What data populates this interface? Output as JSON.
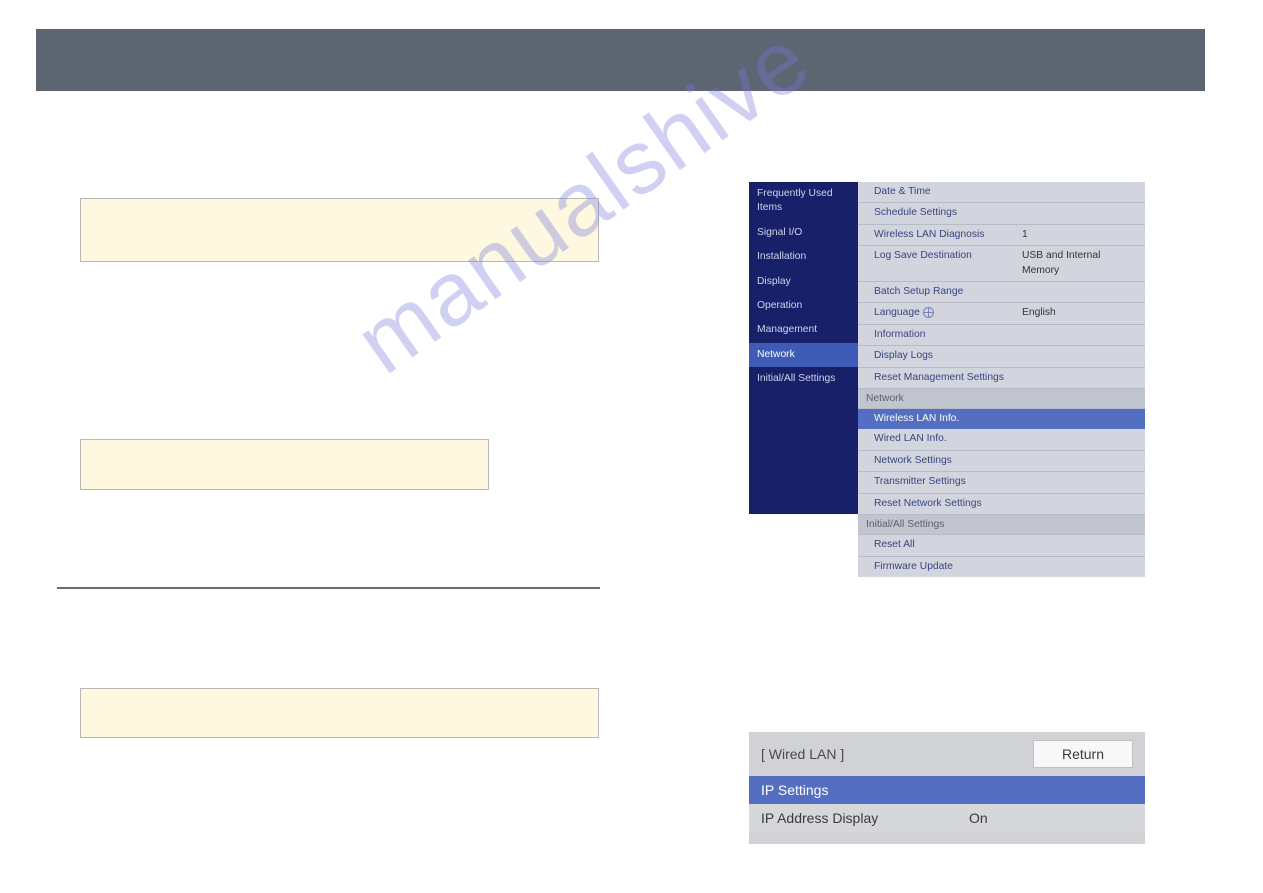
{
  "colors": {
    "banner": "#5d6573",
    "yellowbox_bg": "#fdf8df",
    "yellowbox_border": "#b8b8b8",
    "sidebar_bg": "#18206a",
    "sidebar_selected": "#3e5bb5",
    "right_bg": "#d2d5dd",
    "right_selected": "#546fc1",
    "header_bg": "#c1c5cf",
    "divider": "#6b6b6b",
    "watermark": "rgba(120,120,220,0.35)"
  },
  "watermark": {
    "text": "manualshive"
  },
  "sidebar": {
    "items": [
      {
        "label": "Frequently Used Items"
      },
      {
        "label": "Signal I/O"
      },
      {
        "label": "Installation"
      },
      {
        "label": "Display"
      },
      {
        "label": "Operation"
      },
      {
        "label": "Management"
      },
      {
        "label": "Network"
      },
      {
        "label": "Initial/All Settings"
      }
    ],
    "selected_index": 6
  },
  "right_panel": {
    "management_items": [
      {
        "label": "Date & Time",
        "value": ""
      },
      {
        "label": "Schedule Settings",
        "value": ""
      },
      {
        "label": "Wireless LAN Diagnosis",
        "value": "1"
      },
      {
        "label": "Log Save Destination",
        "value": "USB and Internal Memory"
      },
      {
        "label": "Batch Setup Range",
        "value": ""
      },
      {
        "label": "Language",
        "value": "English",
        "icon": "globe"
      },
      {
        "label": "Information",
        "value": ""
      },
      {
        "label": "Display Logs",
        "value": ""
      },
      {
        "label": "Reset Management Settings",
        "value": ""
      }
    ],
    "network_header": "Network",
    "network_items": [
      {
        "label": "Wireless LAN Info.",
        "selected": true
      },
      {
        "label": "Wired LAN Info."
      },
      {
        "label": "Network Settings"
      },
      {
        "label": "Transmitter Settings"
      },
      {
        "label": "Reset Network Settings"
      }
    ],
    "initial_header": "Initial/All Settings",
    "initial_items": [
      {
        "label": "Reset All"
      },
      {
        "label": "Firmware Update"
      }
    ]
  },
  "wired_panel": {
    "title": "[ Wired LAN ]",
    "return_label": "Return",
    "ip_settings_label": "IP Settings",
    "ip_address_display_label": "IP Address Display",
    "ip_address_display_value": "On"
  }
}
